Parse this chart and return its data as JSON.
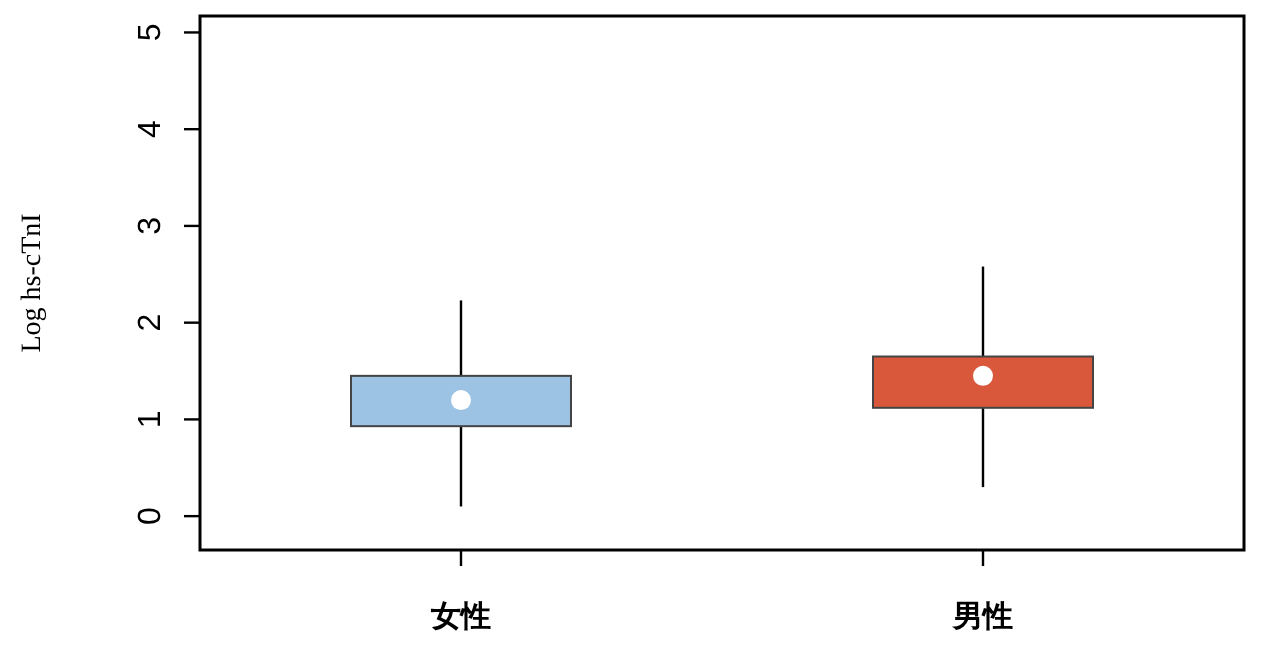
{
  "chart_data": {
    "type": "box",
    "ylabel": "Log hs-cTnI",
    "categories": [
      "女性",
      "男性"
    ],
    "colors": [
      "#9cc3e4",
      "#d9583b"
    ],
    "ylim": [
      -0.35,
      5.17
    ],
    "yticks": [
      0,
      1,
      2,
      3,
      4,
      5
    ],
    "boxes": [
      {
        "low": 0.1,
        "q1": 0.93,
        "median": 1.2,
        "q3": 1.45,
        "high": 2.23
      },
      {
        "low": 0.3,
        "q1": 1.12,
        "median": 1.45,
        "q3": 1.65,
        "high": 2.58
      }
    ]
  }
}
